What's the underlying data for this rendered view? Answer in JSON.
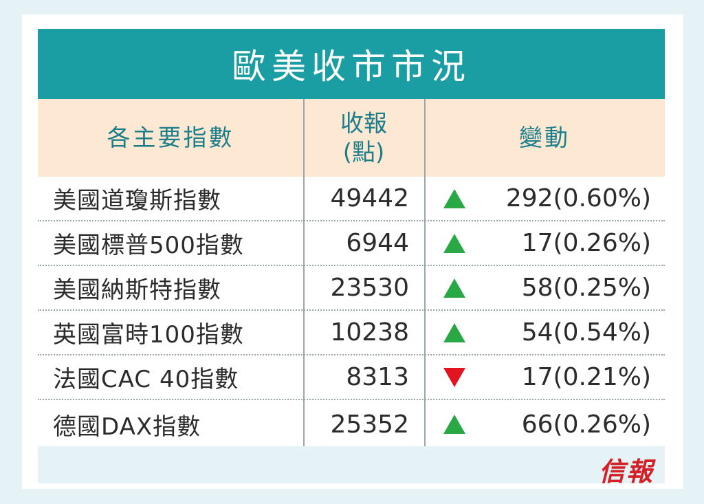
{
  "title": "歐美收市市況",
  "headers": {
    "index": "各主要指數",
    "close_line1": "收報",
    "close_line2": "(點)",
    "change": "變動"
  },
  "rows": [
    {
      "name": "美國道瓊斯指數",
      "close": "49442",
      "direction": "up",
      "change": "292(0.60%)"
    },
    {
      "name": "美國標普500指數",
      "close": "6944",
      "direction": "up",
      "change": "17(0.26%)"
    },
    {
      "name": "美國納斯特指數",
      "close": "23530",
      "direction": "up",
      "change": "58(0.25%)"
    },
    {
      "name": "英國富時100指數",
      "close": "10238",
      "direction": "up",
      "change": "54(0.54%)"
    },
    {
      "name": "法國CAC 40指數",
      "close": "8313",
      "direction": "down",
      "change": "17(0.21%)"
    },
    {
      "name": "德國DAX指數",
      "close": "25352",
      "direction": "up",
      "change": "66(0.26%)"
    }
  ],
  "colors": {
    "title_bg": "#1b9ea3",
    "header_bg": "#fde9d3",
    "up": "#2aa845",
    "down": "#e2141f",
    "logo": "#d41f26"
  },
  "logo": "信報"
}
